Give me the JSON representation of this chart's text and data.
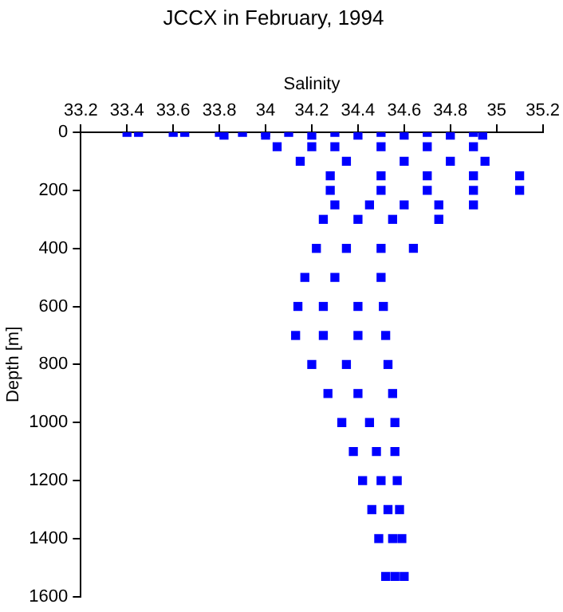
{
  "chart_data": {
    "type": "scatter",
    "title": "JCCX in February, 1994",
    "xlabel": "Salinity",
    "ylabel": "Depth [m]",
    "xlim": [
      33.2,
      35.2
    ],
    "xticks": [
      33.2,
      33.4,
      33.6,
      33.8,
      34,
      34.2,
      34.4,
      34.6,
      34.8,
      35,
      35.2
    ],
    "ylim": [
      1600,
      0
    ],
    "yticks": [
      0,
      200,
      400,
      600,
      800,
      1000,
      1200,
      1400,
      1600
    ],
    "grid": false,
    "legend": false,
    "marker": "square",
    "series": [
      {
        "color": "#0000ff",
        "x": [
          33.4,
          33.45,
          33.6,
          33.65,
          33.8,
          33.9,
          34.0,
          34.1,
          34.3,
          34.5,
          34.7,
          34.9,
          33.82,
          34.0,
          34.2,
          34.4,
          34.6,
          34.8,
          34.94,
          34.05,
          34.2,
          34.3,
          34.5,
          34.7,
          34.9,
          34.15,
          34.35,
          34.6,
          34.8,
          34.95,
          34.28,
          34.5,
          34.7,
          34.9,
          35.1,
          34.28,
          34.5,
          34.7,
          34.9,
          35.1,
          34.3,
          34.45,
          34.6,
          34.75,
          34.9,
          34.25,
          34.4,
          34.55,
          34.75,
          34.22,
          34.35,
          34.5,
          34.64,
          34.17,
          34.3,
          34.5,
          34.14,
          34.25,
          34.4,
          34.51,
          34.13,
          34.25,
          34.4,
          34.52,
          34.2,
          34.35,
          34.53,
          34.27,
          34.4,
          34.55,
          34.33,
          34.45,
          34.56,
          34.38,
          34.48,
          34.56,
          34.42,
          34.5,
          34.57,
          34.46,
          34.53,
          34.58,
          34.49,
          34.55,
          34.59,
          34.52,
          34.56,
          34.6
        ],
        "values": [
          0,
          0,
          0,
          0,
          0,
          0,
          0,
          0,
          0,
          0,
          0,
          0,
          10,
          10,
          10,
          10,
          10,
          10,
          10,
          50,
          50,
          50,
          50,
          50,
          50,
          100,
          100,
          100,
          100,
          100,
          150,
          150,
          150,
          150,
          150,
          200,
          200,
          200,
          200,
          200,
          250,
          250,
          250,
          250,
          250,
          300,
          300,
          300,
          300,
          400,
          400,
          400,
          400,
          500,
          500,
          500,
          600,
          600,
          600,
          600,
          700,
          700,
          700,
          700,
          800,
          800,
          800,
          900,
          900,
          900,
          1000,
          1000,
          1000,
          1100,
          1100,
          1100,
          1200,
          1200,
          1200,
          1300,
          1300,
          1300,
          1400,
          1400,
          1400,
          1530,
          1530,
          1530
        ]
      }
    ]
  }
}
